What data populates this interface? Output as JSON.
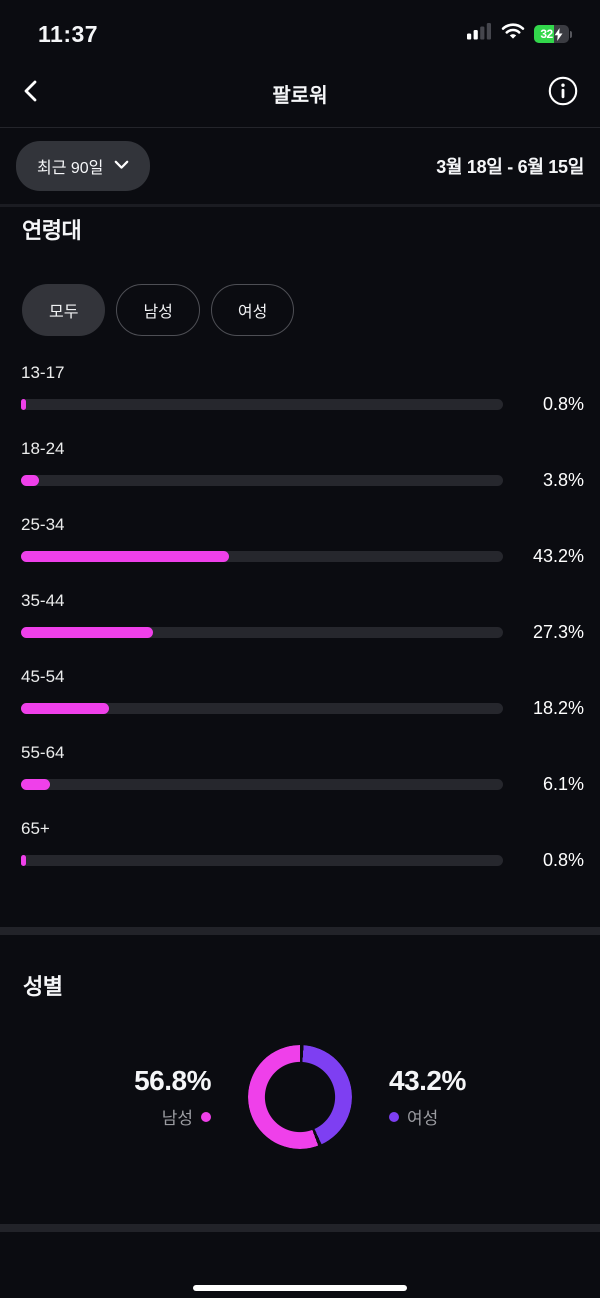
{
  "status_bar": {
    "time": "11:37",
    "battery_percent": "32"
  },
  "header": {
    "title": "팔로워"
  },
  "filter": {
    "range_label": "최근 90일",
    "date_range": "3월 18일 - 6월 15일"
  },
  "age": {
    "title": "연령대",
    "tabs": [
      {
        "label": "모두",
        "selected": true
      },
      {
        "label": "남성",
        "selected": false
      },
      {
        "label": "여성",
        "selected": false
      }
    ]
  },
  "gender": {
    "title": "성별",
    "left": {
      "percent": "56.8%",
      "label": "남성"
    },
    "right": {
      "percent": "43.2%",
      "label": "여성"
    }
  },
  "colors": {
    "background": "#0b0c11",
    "accent_pink": "#ef40ea",
    "accent_purple": "#7e3ff2",
    "bar_track": "#26272d",
    "battery_green": "#32d74b"
  },
  "chart_data": [
    {
      "type": "bar",
      "title": "연령대",
      "orientation": "horizontal",
      "categories": [
        "13-17",
        "18-24",
        "25-34",
        "35-44",
        "45-54",
        "55-64",
        "65+"
      ],
      "values": [
        0.8,
        3.8,
        43.2,
        27.3,
        18.2,
        6.1,
        0.8
      ],
      "value_labels": [
        "0.8%",
        "3.8%",
        "43.2%",
        "27.3%",
        "18.2%",
        "6.1%",
        "0.8%"
      ],
      "xlim": [
        0,
        100
      ],
      "bar_color": "#ef40ea",
      "track_color": "#26272d"
    },
    {
      "type": "pie",
      "subtype": "donut",
      "title": "성별",
      "segments": [
        {
          "name": "남성",
          "value": 56.8,
          "color": "#ef40ea"
        },
        {
          "name": "여성",
          "value": 43.2,
          "color": "#7e3ff2"
        }
      ],
      "start_angle_deg": 0,
      "direction": "clockwise"
    }
  ]
}
